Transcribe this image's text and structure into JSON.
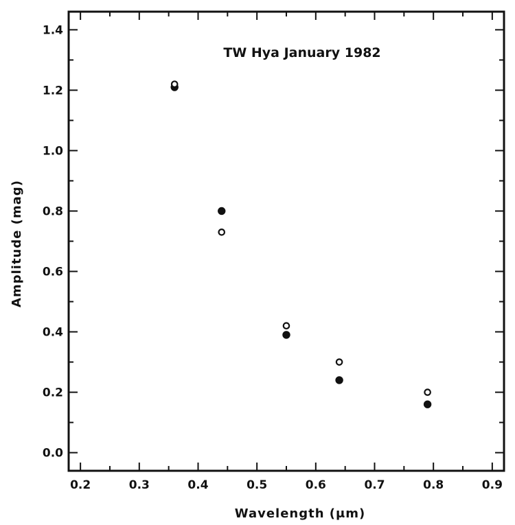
{
  "chart_data": {
    "type": "scatter",
    "title": "TW Hya January 1982",
    "xlabel": "Wavelength (μm)",
    "ylabel": "Amplitude (mag)",
    "xlim": [
      0.18,
      0.92
    ],
    "ylim": [
      -0.06,
      1.46
    ],
    "xticks": [
      0.2,
      0.3,
      0.4,
      0.5,
      0.6,
      0.7,
      0.8,
      0.9
    ],
    "xtick_labels": [
      "0.2",
      "0.3",
      "0.4",
      "0.5",
      "0.6",
      "0.7",
      "0.8",
      "0.9"
    ],
    "yticks": [
      0.0,
      0.2,
      0.4,
      0.6,
      0.8,
      1.0,
      1.2,
      1.4
    ],
    "ytick_labels": [
      "0.0",
      "0.2",
      "0.4",
      "0.6",
      "0.8",
      "1.0",
      "1.2",
      "1.4"
    ],
    "grid": false,
    "series": [
      {
        "marker": "filled-circle",
        "color": "#111111",
        "x": [
          0.36,
          0.44,
          0.55,
          0.64,
          0.79
        ],
        "y": [
          1.21,
          0.8,
          0.39,
          0.24,
          0.16
        ]
      },
      {
        "marker": "open-circle",
        "color": "#111111",
        "x": [
          0.36,
          0.44,
          0.55,
          0.64,
          0.79
        ],
        "y": [
          1.22,
          0.73,
          0.42,
          0.3,
          0.2
        ]
      }
    ]
  }
}
